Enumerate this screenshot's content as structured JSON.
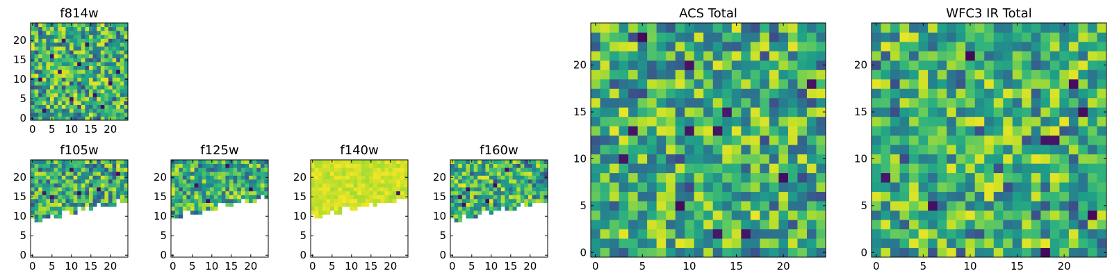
{
  "chart_data": [
    {
      "type": "heatmap",
      "title": "f814w",
      "grid": [
        25,
        25
      ],
      "xlim": [
        -0.5,
        24.5
      ],
      "ylim": [
        -0.5,
        24.5
      ],
      "xticks": [
        0,
        5,
        10,
        15,
        20
      ],
      "yticks": [
        0,
        5,
        10,
        15,
        20
      ],
      "tick_labels": {
        "x": [
          "0",
          "5",
          "10",
          "15",
          "20"
        ],
        "y": [
          "0",
          "5",
          "10",
          "15",
          "20"
        ]
      },
      "coverage": "full",
      "colormap": "viridis",
      "seed": 11,
      "dark_cells": [
        [
          3,
          2
        ],
        [
          5,
          16
        ],
        [
          12,
          14
        ],
        [
          16,
          6
        ],
        [
          20,
          9
        ],
        [
          8,
          20
        ],
        [
          18,
          3
        ],
        [
          2,
          10
        ],
        [
          14,
          19
        ],
        [
          22,
          12
        ],
        [
          10,
          5
        ],
        [
          7,
          12
        ]
      ]
    },
    {
      "type": "heatmap",
      "title": "f105w",
      "grid": [
        25,
        25
      ],
      "xlim": [
        -0.5,
        24.5
      ],
      "ylim": [
        -0.5,
        24.5
      ],
      "xticks": [
        0,
        5,
        10,
        15,
        20
      ],
      "yticks": [
        0,
        5,
        10,
        15,
        20
      ],
      "tick_labels": {
        "x": [
          "0",
          "5",
          "10",
          "15",
          "20"
        ],
        "y": [
          "0",
          "5",
          "10",
          "15",
          "20"
        ]
      },
      "coverage": "upper",
      "coverage_edge": [
        9,
        14
      ],
      "colormap": "viridis",
      "seed": 23,
      "dark_cells": [
        [
          3,
          16
        ],
        [
          12,
          16
        ],
        [
          17,
          17
        ],
        [
          22,
          21
        ],
        [
          5,
          15
        ],
        [
          10,
          22
        ]
      ]
    },
    {
      "type": "heatmap",
      "title": "f125w",
      "grid": [
        25,
        25
      ],
      "xlim": [
        -0.5,
        24.5
      ],
      "ylim": [
        -0.5,
        24.5
      ],
      "xticks": [
        0,
        5,
        10,
        15,
        20
      ],
      "yticks": [
        0,
        5,
        10,
        15,
        20
      ],
      "tick_labels": {
        "x": [
          "0",
          "5",
          "10",
          "15",
          "20"
        ],
        "y": [
          "0",
          "5",
          "10",
          "15",
          "20"
        ]
      },
      "coverage": "upper",
      "coverage_edge": [
        10,
        15
      ],
      "colormap": "viridis",
      "seed": 37,
      "dark_cells": [
        [
          6,
          18
        ],
        [
          14,
          23
        ],
        [
          20,
          17
        ],
        [
          9,
          14
        ]
      ]
    },
    {
      "type": "heatmap",
      "title": "f140w",
      "grid": [
        25,
        25
      ],
      "xlim": [
        -0.5,
        24.5
      ],
      "ylim": [
        -0.5,
        24.5
      ],
      "xticks": [
        0,
        5,
        10,
        15,
        20
      ],
      "yticks": [
        0,
        5,
        10,
        15,
        20
      ],
      "tick_labels": {
        "x": [
          "0",
          "5",
          "10",
          "15",
          "20"
        ],
        "y": [
          "0",
          "5",
          "10",
          "15",
          "20"
        ]
      },
      "coverage": "upper",
      "coverage_edge": [
        10,
        15
      ],
      "colormap": "viridis",
      "seed": 41,
      "value_range": [
        0.86,
        0.99
      ],
      "dark_cells": [
        [
          22,
          16
        ]
      ]
    },
    {
      "type": "heatmap",
      "title": "f160w",
      "grid": [
        25,
        25
      ],
      "xlim": [
        -0.5,
        24.5
      ],
      "ylim": [
        -0.5,
        24.5
      ],
      "xticks": [
        0,
        5,
        10,
        15,
        20
      ],
      "yticks": [
        0,
        5,
        10,
        15,
        20
      ],
      "tick_labels": {
        "x": [
          "0",
          "5",
          "10",
          "15",
          "20"
        ],
        "y": [
          "0",
          "5",
          "10",
          "15",
          "20"
        ]
      },
      "coverage": "upper",
      "coverage_edge": [
        9,
        14
      ],
      "colormap": "viridis",
      "seed": 53,
      "dark_cells": [
        [
          3,
          13
        ],
        [
          2,
          15
        ],
        [
          9,
          14
        ],
        [
          14,
          22
        ],
        [
          4,
          17
        ],
        [
          11,
          18
        ]
      ]
    },
    {
      "type": "heatmap",
      "title": "ACS Total",
      "grid": [
        25,
        25
      ],
      "xlim": [
        -0.5,
        24.5
      ],
      "ylim": [
        -0.5,
        24.5
      ],
      "xticks": [
        0,
        5,
        10,
        15,
        20
      ],
      "yticks": [
        0,
        5,
        10,
        15,
        20
      ],
      "tick_labels": {
        "x": [
          "0",
          "5",
          "10",
          "15",
          "20"
        ],
        "y": [
          "0",
          "5",
          "10",
          "15",
          "20"
        ]
      },
      "coverage": "full",
      "colormap": "viridis",
      "seed": 67,
      "dark_cells": [
        [
          4,
          13
        ],
        [
          10,
          13
        ],
        [
          13,
          13
        ],
        [
          14,
          15
        ],
        [
          3,
          10
        ],
        [
          9,
          5
        ],
        [
          13,
          2
        ],
        [
          16,
          2
        ],
        [
          23,
          18
        ],
        [
          5,
          23
        ],
        [
          10,
          20
        ],
        [
          20,
          8
        ]
      ]
    },
    {
      "type": "heatmap",
      "title": "WFC3 IR Total",
      "grid": [
        25,
        25
      ],
      "xlim": [
        -0.5,
        24.5
      ],
      "ylim": [
        -0.5,
        24.5
      ],
      "xticks": [
        0,
        5,
        10,
        15,
        20
      ],
      "yticks": [
        0,
        5,
        10,
        15,
        20
      ],
      "tick_labels": {
        "x": [
          "0",
          "5",
          "10",
          "15",
          "20"
        ],
        "y": [
          "0",
          "5",
          "10",
          "15",
          "20"
        ]
      },
      "coverage": "full",
      "colormap": "viridis",
      "seed": 79,
      "dark_cells": [
        [
          18,
          12
        ],
        [
          19,
          12
        ],
        [
          22,
          15
        ],
        [
          21,
          18
        ],
        [
          6,
          5
        ],
        [
          18,
          0
        ],
        [
          10,
          21
        ],
        [
          1,
          8
        ],
        [
          23,
          4
        ]
      ]
    }
  ]
}
